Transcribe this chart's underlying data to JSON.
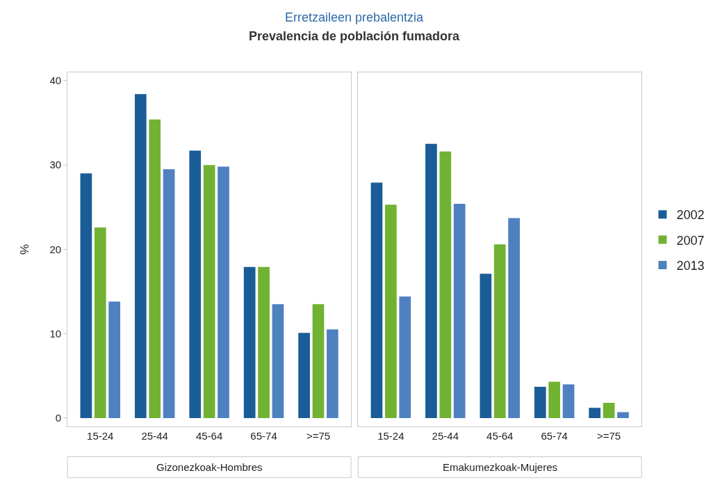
{
  "chart_data": [
    {
      "type": "bar",
      "title": "Erretzaileen prebalentzia",
      "subtitle": "Prevalencia de población fumadora",
      "xlabel": "Gizonezkoak-Hombres",
      "ylabel": "%",
      "categories": [
        "15-24",
        "25-44",
        "45-64",
        "65-74",
        ">=75"
      ],
      "series": [
        {
          "name": "2002",
          "color": "#1a5d96",
          "values": [
            29.0,
            38.4,
            31.7,
            17.9,
            10.1
          ]
        },
        {
          "name": "2007",
          "color": "#72b232",
          "values": [
            22.6,
            35.4,
            30.0,
            17.9,
            13.5
          ]
        },
        {
          "name": "2013",
          "color": "#4f81c0",
          "values": [
            13.8,
            29.5,
            29.8,
            13.5,
            10.5
          ]
        }
      ],
      "ylim": [
        -1,
        41
      ],
      "yticks": [
        0,
        10,
        20,
        30,
        40
      ],
      "legend": "right"
    },
    {
      "type": "bar",
      "xlabel": "Emakumezkoak-Mujeres",
      "categories": [
        "15-24",
        "25-44",
        "45-64",
        "65-74",
        ">=75"
      ],
      "series": [
        {
          "name": "2002",
          "color": "#1a5d96",
          "values": [
            27.9,
            32.5,
            17.1,
            3.7,
            1.2
          ]
        },
        {
          "name": "2007",
          "color": "#72b232",
          "values": [
            25.3,
            31.6,
            20.6,
            4.3,
            1.8
          ]
        },
        {
          "name": "2013",
          "color": "#4f81c0",
          "values": [
            14.4,
            25.4,
            23.7,
            4.0,
            0.7
          ]
        }
      ],
      "ylim": [
        -1,
        41
      ],
      "yticks": [
        0,
        10,
        20,
        30,
        40
      ],
      "tick_labels": "x",
      "legend": "right"
    }
  ]
}
